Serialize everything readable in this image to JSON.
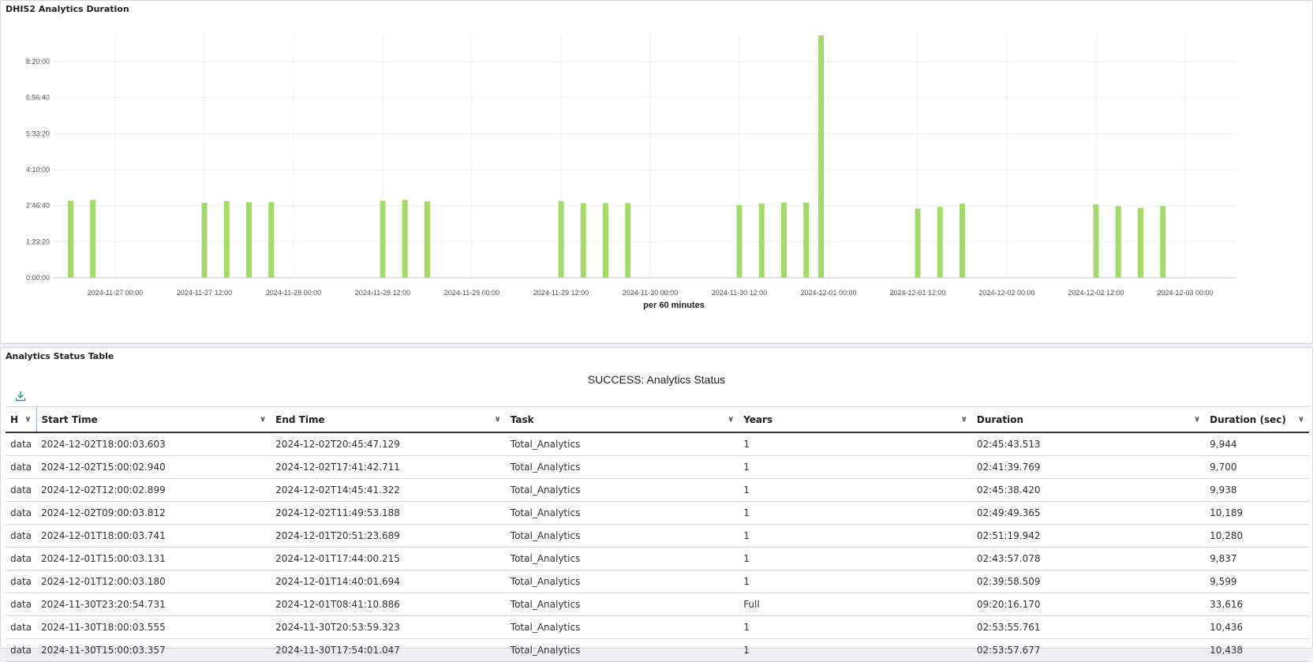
{
  "chart_panel": {
    "title": "DHIS2 Analytics Duration"
  },
  "chart_data": {
    "type": "bar",
    "x_title": "per 60 minutes",
    "bar_color": "#a6d96a",
    "grid": true,
    "y_tick_labels": [
      "0:00:00",
      "1:23:20",
      "2:46:40",
      "4:10:00",
      "5:33:20",
      "6:56:40",
      "8:20:00"
    ],
    "y_tick_values_sec": [
      0,
      5000,
      10000,
      15000,
      20000,
      25000,
      30000
    ],
    "ylim_sec": [
      0,
      33616
    ],
    "x_tick_labels": [
      "2024-11-27 00:00",
      "2024-11-27 12:00",
      "2024-11-28 00:00",
      "2024-11-28 12:00",
      "2024-11-29 00:00",
      "2024-11-29 12:00",
      "2024-11-30 00:00",
      "2024-11-30 12:00",
      "2024-12-01 00:00",
      "2024-12-01 12:00",
      "2024-12-02 00:00",
      "2024-12-02 12:00",
      "2024-12-03 00:00"
    ],
    "x_tick_times": [
      "2024-11-27T00:00",
      "2024-11-27T12:00",
      "2024-11-28T00:00",
      "2024-11-28T12:00",
      "2024-11-29T00:00",
      "2024-11-29T12:00",
      "2024-11-30T00:00",
      "2024-11-30T12:00",
      "2024-12-01T00:00",
      "2024-12-01T12:00",
      "2024-12-02T00:00",
      "2024-12-02T12:00",
      "2024-12-03T00:00"
    ],
    "x": [
      "2024-11-26T18:00",
      "2024-11-26T21:00",
      "2024-11-27T12:00",
      "2024-11-27T15:00",
      "2024-11-27T18:00",
      "2024-11-27T21:00",
      "2024-11-28T12:00",
      "2024-11-28T15:00",
      "2024-11-28T18:00",
      "2024-11-29T12:00",
      "2024-11-29T15:00",
      "2024-11-29T18:00",
      "2024-11-29T21:00",
      "2024-11-30T12:00",
      "2024-11-30T15:00",
      "2024-11-30T18:00",
      "2024-11-30T21:00",
      "2024-11-30T23:00",
      "2024-12-01T12:00",
      "2024-12-01T15:00",
      "2024-12-01T18:00",
      "2024-12-02T12:00",
      "2024-12-02T15:00",
      "2024-12-02T18:00",
      "2024-12-02T21:00"
    ],
    "values_sec": [
      10700,
      10800,
      10400,
      10650,
      10500,
      10500,
      10700,
      10800,
      10600,
      10650,
      10350,
      10350,
      10350,
      10100,
      10300,
      10450,
      10436,
      33616,
      9599,
      9837,
      10280,
      10189,
      9938,
      9700,
      9944
    ]
  },
  "table_panel": {
    "title": "Analytics Status Table",
    "heading": "SUCCESS: Analytics Status",
    "download_icon": "download-icon",
    "columns": [
      "H",
      "Start Time",
      "End Time",
      "Task",
      "Years",
      "Duration",
      "Duration (sec)"
    ],
    "rows": [
      [
        "data",
        "2024-12-02T18:00:03.603",
        "2024-12-02T20:45:47.129",
        "Total_Analytics",
        "1",
        "02:45:43.513",
        "9,944"
      ],
      [
        "data",
        "2024-12-02T15:00:02.940",
        "2024-12-02T17:41:42.711",
        "Total_Analytics",
        "1",
        "02:41:39.769",
        "9,700"
      ],
      [
        "data",
        "2024-12-02T12:00:02.899",
        "2024-12-02T14:45:41.322",
        "Total_Analytics",
        "1",
        "02:45:38.420",
        "9,938"
      ],
      [
        "data",
        "2024-12-02T09:00:03.812",
        "2024-12-02T11:49:53.188",
        "Total_Analytics",
        "1",
        "02:49:49.365",
        "10,189"
      ],
      [
        "data",
        "2024-12-01T18:00:03.741",
        "2024-12-01T20:51:23.689",
        "Total_Analytics",
        "1",
        "02:51:19.942",
        "10,280"
      ],
      [
        "data",
        "2024-12-01T15:00:03.131",
        "2024-12-01T17:44:00.215",
        "Total_Analytics",
        "1",
        "02:43:57.078",
        "9,837"
      ],
      [
        "data",
        "2024-12-01T12:00:03.180",
        "2024-12-01T14:40:01.694",
        "Total_Analytics",
        "1",
        "02:39:58.509",
        "9,599"
      ],
      [
        "data",
        "2024-11-30T23:20:54.731",
        "2024-12-01T08:41:10.886",
        "Total_Analytics",
        "Full",
        "09:20:16.170",
        "33,616"
      ],
      [
        "data",
        "2024-11-30T18:00:03.555",
        "2024-11-30T20:53:59.323",
        "Total_Analytics",
        "1",
        "02:53:55.761",
        "10,436"
      ],
      [
        "data",
        "2024-11-30T15:00:03.357",
        "2024-11-30T17:54:01.047",
        "Total_Analytics",
        "1",
        "02:53:57.677",
        "10,438"
      ]
    ]
  }
}
